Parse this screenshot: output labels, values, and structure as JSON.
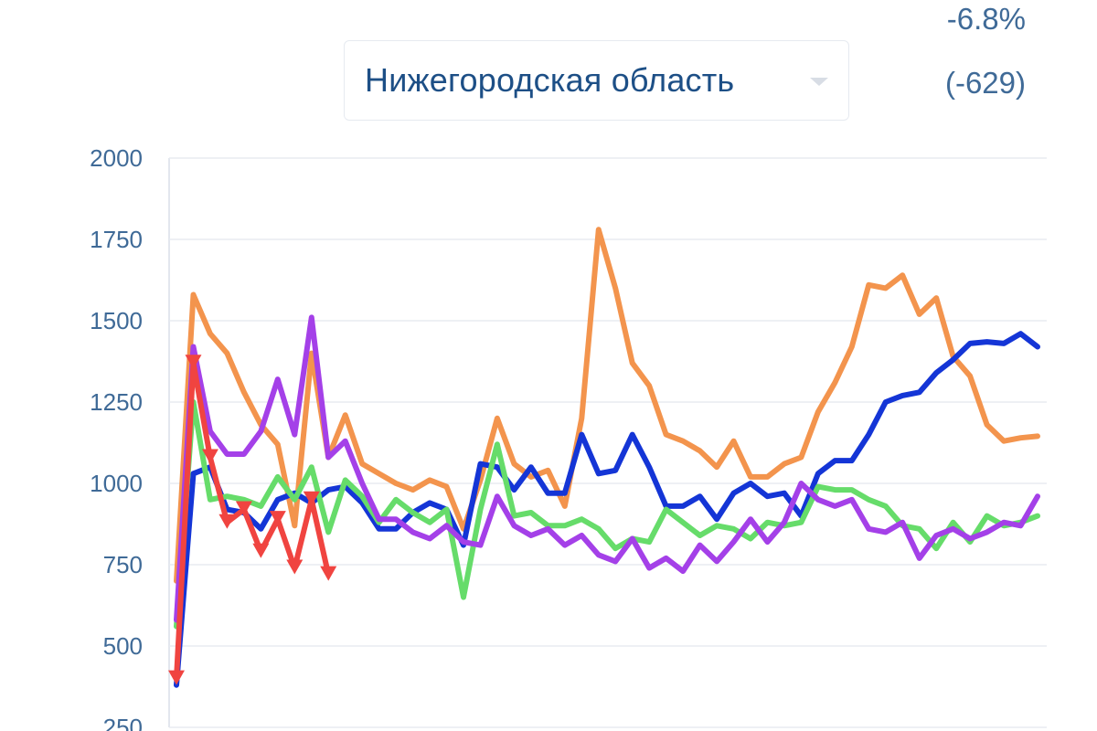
{
  "header": {
    "region_select": "Нижегородская область",
    "change_percent": "-6.8%",
    "change_absolute": "(-629)"
  },
  "chart_data": {
    "type": "line",
    "ylim": [
      250,
      2000
    ],
    "yticks": [
      250,
      500,
      750,
      1000,
      1250,
      1500,
      1750,
      2000
    ],
    "grid": true,
    "series": [
      {
        "color": "#f3944d",
        "values": [
          700,
          1580,
          1460,
          1400,
          1280,
          1180,
          1120,
          870,
          1400,
          1080,
          1210,
          1060,
          1030,
          1000,
          980,
          1010,
          990,
          860,
          1010,
          1200,
          1060,
          1020,
          1040,
          930,
          1200,
          1780,
          1600,
          1370,
          1300,
          1150,
          1130,
          1100,
          1050,
          1130,
          1020,
          1020,
          1060,
          1080,
          1220,
          1310,
          1420,
          1610,
          1600,
          1640,
          1520,
          1570,
          1390,
          1330,
          1180,
          1130,
          1140,
          1145
        ]
      },
      {
        "color": "#1435d6",
        "values": [
          380,
          1030,
          1050,
          920,
          910,
          860,
          950,
          970,
          940,
          980,
          990,
          940,
          860,
          860,
          910,
          940,
          920,
          810,
          1060,
          1050,
          980,
          1050,
          970,
          970,
          1150,
          1030,
          1040,
          1150,
          1050,
          930,
          930,
          960,
          890,
          970,
          1000,
          960,
          970,
          900,
          1030,
          1070,
          1070,
          1150,
          1250,
          1270,
          1280,
          1340,
          1380,
          1430,
          1435,
          1430,
          1460,
          1420
        ]
      },
      {
        "color": "#66dc6a",
        "values": [
          560,
          1250,
          950,
          960,
          950,
          930,
          1020,
          950,
          1050,
          850,
          1010,
          960,
          880,
          950,
          910,
          880,
          920,
          650,
          920,
          1120,
          900,
          910,
          870,
          870,
          890,
          860,
          800,
          830,
          820,
          920,
          880,
          840,
          870,
          860,
          830,
          880,
          870,
          880,
          990,
          980,
          980,
          950,
          930,
          870,
          860,
          800,
          880,
          820,
          900,
          870,
          880,
          900
        ]
      },
      {
        "color": "#a440e8",
        "values": [
          580,
          1420,
          1160,
          1090,
          1090,
          1160,
          1320,
          1150,
          1510,
          1080,
          1130,
          1000,
          890,
          890,
          850,
          830,
          870,
          820,
          810,
          960,
          870,
          840,
          860,
          810,
          840,
          780,
          760,
          830,
          740,
          770,
          730,
          810,
          760,
          820,
          890,
          820,
          880,
          1000,
          950,
          930,
          950,
          860,
          850,
          880,
          770,
          840,
          860,
          830,
          850,
          880,
          870,
          960
        ]
      },
      {
        "color": "#f04440",
        "values": [
          400,
          1370,
          1080,
          880,
          920,
          790,
          890,
          740,
          950,
          720
        ]
      }
    ]
  }
}
